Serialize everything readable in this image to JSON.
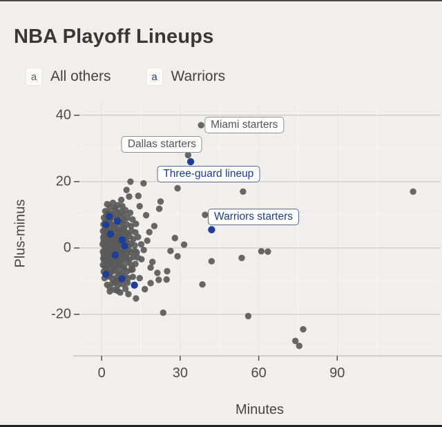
{
  "title": "NBA Playoff Lineups",
  "legend": {
    "items": [
      {
        "key_glyph": "a",
        "label": "All others",
        "color": "#5a5a5a"
      },
      {
        "key_glyph": "a",
        "label": "Warriors",
        "color": "#1e3e97"
      }
    ]
  },
  "colors": {
    "background": "#f1efee",
    "others_point": "#5a5a5a",
    "warriors_point": "#1e3e97",
    "grid_major_h": "#c3c1bf",
    "grid_major_v": "#e8e6e4",
    "grid_minor": "#f7f6f4",
    "axis_line": "#b3b1af",
    "tick_mark": "#4d4d4d",
    "text": "#454545"
  },
  "chart_data": {
    "type": "scatter",
    "title": "NBA Playoff Lineups",
    "xlabel": "Minutes",
    "ylabel": "Plus-minus",
    "xlim": [
      -8.5,
      129.5
    ],
    "ylim": [
      -32.5,
      43.5
    ],
    "x_ticks": [
      0,
      30,
      60,
      90
    ],
    "x_tick_labels": [
      "0",
      "30",
      "60",
      "90"
    ],
    "y_ticks": [
      -20,
      0,
      20,
      40
    ],
    "y_tick_labels": [
      "-20",
      "0",
      "20",
      "40"
    ],
    "x_minor_ticks": [
      15,
      45,
      75,
      105
    ],
    "y_minor_ticks": [
      -30,
      -10,
      10,
      30
    ],
    "grid": "on",
    "legend_position": "top",
    "series": [
      {
        "name": "All others",
        "color": "#5a5a5a",
        "radius": 4.7,
        "points": [
          [
            38,
            37
          ],
          [
            33,
            28
          ],
          [
            11,
            20
          ],
          [
            16,
            19.5
          ],
          [
            9.5,
            17.5
          ],
          [
            29,
            18
          ],
          [
            54,
            17
          ],
          [
            119,
            17
          ],
          [
            7.5,
            14.5
          ],
          [
            10.5,
            15.5
          ],
          [
            14,
            15.7
          ],
          [
            22.5,
            14
          ],
          [
            22,
            11.8
          ],
          [
            14.5,
            12.6
          ],
          [
            17,
            9.9
          ],
          [
            8.5,
            10.1
          ],
          [
            39.5,
            10
          ],
          [
            28,
            3
          ],
          [
            31.5,
            1
          ],
          [
            29,
            -2.5
          ],
          [
            42,
            -4
          ],
          [
            53.5,
            -3
          ],
          [
            61,
            -1
          ],
          [
            63.5,
            -1.1
          ],
          [
            38.5,
            -11
          ],
          [
            25,
            -7
          ],
          [
            24.8,
            -9.5
          ],
          [
            23.5,
            -19.5
          ],
          [
            56,
            -20.5
          ],
          [
            77,
            -24.5
          ],
          [
            74,
            -28
          ],
          [
            75.5,
            -29.5
          ],
          [
            2.1,
            13.2
          ],
          [
            4.3,
            13.6
          ],
          [
            6.2,
            12.9
          ],
          [
            3.1,
            12.3
          ],
          [
            7.9,
            12.6
          ],
          [
            5.2,
            12.1
          ],
          [
            1.4,
            11.1
          ],
          [
            3,
            10.6
          ],
          [
            5.1,
            11.3
          ],
          [
            7.2,
            10.9
          ],
          [
            9.1,
            11.4
          ],
          [
            2.2,
            10.3
          ],
          [
            4.1,
            10.1
          ],
          [
            10.9,
            10.6
          ],
          [
            6.3,
            10.4
          ],
          [
            0.9,
            9.1
          ],
          [
            2.4,
            8.6
          ],
          [
            4.2,
            9.3
          ],
          [
            5.6,
            8.9
          ],
          [
            7.1,
            9.6
          ],
          [
            8.4,
            8.3
          ],
          [
            9.9,
            9.1
          ],
          [
            3.2,
            8.2
          ],
          [
            11.8,
            8.6
          ],
          [
            6.1,
            8.4
          ],
          [
            1.7,
            9.7
          ],
          [
            0.7,
            7.1
          ],
          [
            2.1,
            6.6
          ],
          [
            3.6,
            7.3
          ],
          [
            5.1,
            6.9
          ],
          [
            6.6,
            7.6
          ],
          [
            8.1,
            6.3
          ],
          [
            9.6,
            7.1
          ],
          [
            11.2,
            6.6
          ],
          [
            1.4,
            7.9
          ],
          [
            4.6,
            6.2
          ],
          [
            7.4,
            7.9
          ],
          [
            13.1,
            7.3
          ],
          [
            2.9,
            7.5
          ],
          [
            0.5,
            5.1
          ],
          [
            1.6,
            4.6
          ],
          [
            2.6,
            5.3
          ],
          [
            3.4,
            4.9
          ],
          [
            4.4,
            5.6
          ],
          [
            5.4,
            4.3
          ],
          [
            6.6,
            5.1
          ],
          [
            7.6,
            4.6
          ],
          [
            8.6,
            5.9
          ],
          [
            9.9,
            4.4
          ],
          [
            11.4,
            5.2
          ],
          [
            2.1,
            5.8
          ],
          [
            3.1,
            4.2
          ],
          [
            12.9,
            4.7
          ],
          [
            1.1,
            5.5
          ],
          [
            6.1,
            5.7
          ],
          [
            9.1,
            4.8
          ],
          [
            0.6,
            3.1
          ],
          [
            1.3,
            2.6
          ],
          [
            2.1,
            3.3
          ],
          [
            2.9,
            2.9
          ],
          [
            3.7,
            3.6
          ],
          [
            4.5,
            2.3
          ],
          [
            5.3,
            3.1
          ],
          [
            6.1,
            2.6
          ],
          [
            6.9,
            3.9
          ],
          [
            7.7,
            2.4
          ],
          [
            8.5,
            3.2
          ],
          [
            9.3,
            2.8
          ],
          [
            10.6,
            3.5
          ],
          [
            12.1,
            2.7
          ],
          [
            1.9,
            3.8
          ],
          [
            3.3,
            2.2
          ],
          [
            13.9,
            3.3
          ],
          [
            0.9,
            3.7
          ],
          [
            5.9,
            3.8
          ],
          [
            4.9,
            3.4
          ],
          [
            0.4,
            1.1
          ],
          [
            1.1,
            0.6
          ],
          [
            1.7,
            1.3
          ],
          [
            2.3,
            0.9
          ],
          [
            2.9,
            1.6
          ],
          [
            3.5,
            0.3
          ],
          [
            4.1,
            1.1
          ],
          [
            4.7,
            0.6
          ],
          [
            5.3,
            1.9
          ],
          [
            5.9,
            0.4
          ],
          [
            6.5,
            1.2
          ],
          [
            7.1,
            0.9
          ],
          [
            7.9,
            1.5
          ],
          [
            8.7,
            0.7
          ],
          [
            9.5,
            1.8
          ],
          [
            10.3,
            0.5
          ],
          [
            11.1,
            1.4
          ],
          [
            12.6,
            0.8
          ],
          [
            1.5,
            1.8
          ],
          [
            3.9,
            1.7
          ],
          [
            15.1,
            1.1
          ],
          [
            0.7,
            1.9
          ],
          [
            0.5,
            -1.1
          ],
          [
            1.1,
            -0.6
          ],
          [
            1.7,
            -1.3
          ],
          [
            2.3,
            -0.9
          ],
          [
            2.9,
            -1.6
          ],
          [
            3.5,
            -0.3
          ],
          [
            4.1,
            -1.1
          ],
          [
            4.7,
            -0.6
          ],
          [
            5.3,
            -1.9
          ],
          [
            5.9,
            -0.4
          ],
          [
            6.5,
            -1.2
          ],
          [
            7.1,
            -0.9
          ],
          [
            7.9,
            -1.5
          ],
          [
            8.7,
            -0.7
          ],
          [
            9.5,
            -1.8
          ],
          [
            10.3,
            -0.5
          ],
          [
            11.1,
            -1.4
          ],
          [
            12.6,
            -0.8
          ],
          [
            1.5,
            -1.8
          ],
          [
            3.9,
            -1.7
          ],
          [
            16.1,
            -0.6
          ],
          [
            0.8,
            -1.9
          ],
          [
            0.6,
            -3.1
          ],
          [
            1.3,
            -2.6
          ],
          [
            2.1,
            -3.3
          ],
          [
            2.9,
            -2.9
          ],
          [
            3.7,
            -3.6
          ],
          [
            4.5,
            -2.3
          ],
          [
            5.3,
            -3.1
          ],
          [
            6.1,
            -2.6
          ],
          [
            6.9,
            -3.9
          ],
          [
            7.7,
            -2.4
          ],
          [
            8.5,
            -3.2
          ],
          [
            9.3,
            -2.8
          ],
          [
            10.6,
            -3.5
          ],
          [
            12.1,
            -2.7
          ],
          [
            1.9,
            -3.8
          ],
          [
            3.3,
            -2.2
          ],
          [
            0.9,
            -3.7
          ],
          [
            5.9,
            -3.9
          ],
          [
            13.8,
            -2.9
          ],
          [
            0.5,
            -5.1
          ],
          [
            1.6,
            -4.6
          ],
          [
            2.6,
            -5.3
          ],
          [
            3.6,
            -4.9
          ],
          [
            4.6,
            -5.6
          ],
          [
            5.6,
            -4.3
          ],
          [
            6.6,
            -5.1
          ],
          [
            7.6,
            -4.6
          ],
          [
            8.6,
            -5.9
          ],
          [
            9.9,
            -4.4
          ],
          [
            11.4,
            -5.2
          ],
          [
            2.1,
            -5.8
          ],
          [
            3.1,
            -4.2
          ],
          [
            1.1,
            -5.5
          ],
          [
            6.1,
            -5.8
          ],
          [
            12.9,
            -4.8
          ],
          [
            0.8,
            -7.1
          ],
          [
            2.1,
            -6.6
          ],
          [
            3.6,
            -7.3
          ],
          [
            5.1,
            -6.9
          ],
          [
            6.6,
            -7.6
          ],
          [
            8.1,
            -6.3
          ],
          [
            9.6,
            -7.1
          ],
          [
            11.1,
            -6.6
          ],
          [
            1.5,
            -7.9
          ],
          [
            4.6,
            -6.2
          ],
          [
            7.4,
            -7.9
          ],
          [
            2.9,
            -7.5
          ],
          [
            1.1,
            -9.1
          ],
          [
            2.6,
            -8.6
          ],
          [
            4.1,
            -9.3
          ],
          [
            5.6,
            -8.9
          ],
          [
            7.1,
            -9.6
          ],
          [
            8.6,
            -8.3
          ],
          [
            10.1,
            -9.1
          ],
          [
            3.1,
            -8.2
          ],
          [
            6.1,
            -9.8
          ],
          [
            11.9,
            -8.7
          ],
          [
            2.1,
            -11.1
          ],
          [
            4.1,
            -10.6
          ],
          [
            6.1,
            -11.3
          ],
          [
            8.1,
            -10.9
          ],
          [
            3.1,
            -11.9
          ],
          [
            9.9,
            -10.5
          ],
          [
            5.1,
            -10.3
          ],
          [
            3.1,
            -13.1
          ],
          [
            5.1,
            -12.6
          ],
          [
            7.1,
            -13.4
          ],
          [
            9.1,
            -12.3
          ],
          [
            6.1,
            -12.9
          ],
          [
            13.4,
            -1.3
          ],
          [
            15.2,
            -3.4
          ],
          [
            18.7,
            -5.9
          ],
          [
            21.3,
            -7.5
          ],
          [
            11.8,
            -6.5
          ],
          [
            14.5,
            -9.1
          ],
          [
            18.7,
            -10.6
          ],
          [
            13.1,
            -15.2
          ],
          [
            21.8,
            -9.6
          ],
          [
            26.3,
            -0.9
          ],
          [
            16.5,
            -12.4
          ],
          [
            10.2,
            -13.9
          ],
          [
            18.2,
            4.8
          ],
          [
            19.4,
            -4.2
          ],
          [
            20.1,
            6.6
          ],
          [
            17.4,
            2.2
          ]
        ]
      },
      {
        "name": "Warriors",
        "color": "#1e3e97",
        "radius": 5.2,
        "points": [
          [
            34,
            26
          ],
          [
            42,
            5.5
          ],
          [
            2.9,
            9.5
          ],
          [
            1.6,
            7
          ],
          [
            7.8,
            2.5
          ],
          [
            3.4,
            4.2
          ],
          [
            5.2,
            -2.1
          ],
          [
            8.8,
            0.6
          ],
          [
            1.6,
            -7.9
          ],
          [
            7.8,
            -9.3
          ],
          [
            12.5,
            -11.2
          ],
          [
            6,
            8.1
          ]
        ]
      }
    ],
    "annotations": [
      {
        "text": "Miami starters",
        "point": [
          38,
          37
        ],
        "label_center": [
          54.5,
          37
        ],
        "style": "gray"
      },
      {
        "text": "Dallas starters",
        "point": [
          33,
          28
        ],
        "label_center": [
          23,
          31.3
        ],
        "style": "gray"
      },
      {
        "text": "Three-guard lineup",
        "point": [
          34,
          26
        ],
        "label_center": [
          40.8,
          22.3
        ],
        "style": "blue"
      },
      {
        "text": "Warriors starters",
        "point": [
          42,
          5.5
        ],
        "label_center": [
          58,
          9.3
        ],
        "style": "blue"
      }
    ]
  }
}
